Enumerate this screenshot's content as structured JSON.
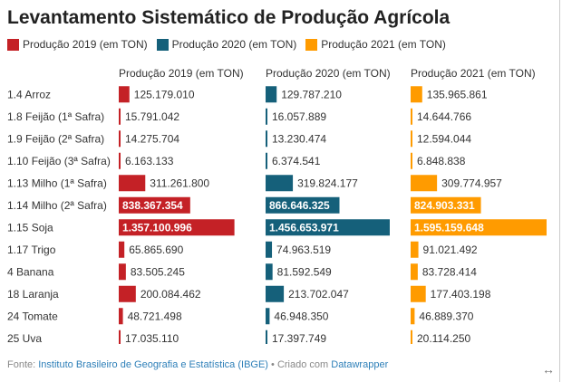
{
  "title": "Levantamento Sistemático de Produção Agrícola",
  "legend": [
    {
      "label": "Produção 2019 (em TON)",
      "color": "#c42126"
    },
    {
      "label": "Produção 2020 (em TON)",
      "color": "#15607a"
    },
    {
      "label": "Produção 2021 (em TON)",
      "color": "#ff9b00"
    }
  ],
  "chart_data": {
    "type": "bar",
    "orientation": "horizontal",
    "categories": [
      "1.4 Arroz",
      "1.8 Feijão (1ª Safra)",
      "1.9 Feijão (2ª Safra)",
      "1.10 Feijão (3ª Safra)",
      "1.13 Milho (1ª Safra)",
      "1.14 Milho (2ª Safra)",
      "1.15 Soja",
      "1.17 Trigo",
      "4 Banana",
      "18 Laranja",
      "24 Tomate",
      "25 Uva"
    ],
    "series": [
      {
        "name": "Produção 2019 (em TON)",
        "color": "#c42126",
        "values": [
          125179010,
          15791042,
          14275704,
          6163133,
          311261800,
          838367354,
          1357100996,
          65865690,
          83505245,
          200084462,
          48721498,
          17035110
        ],
        "labels": [
          "125.179.010",
          "15.791.042",
          "14.275.704",
          "6.163.133",
          "311.261.800",
          "838.367.354",
          "1.357.100.996",
          "65.865.690",
          "83.505.245",
          "200.084.462",
          "48.721.498",
          "17.035.110"
        ]
      },
      {
        "name": "Produção 2020 (em TON)",
        "color": "#15607a",
        "values": [
          129787210,
          16057889,
          13230474,
          6374541,
          319824177,
          866646325,
          1456653971,
          74963519,
          81592549,
          213702047,
          46948350,
          17397749
        ],
        "labels": [
          "129.787.210",
          "16.057.889",
          "13.230.474",
          "6.374.541",
          "319.824.177",
          "866.646.325",
          "1.456.653.971",
          "74.963.519",
          "81.592.549",
          "213.702.047",
          "46.948.350",
          "17.397.749"
        ]
      },
      {
        "name": "Produção 2021 (em TON)",
        "color": "#ff9b00",
        "values": [
          135965861,
          14644766,
          12594044,
          6848838,
          309774957,
          824903331,
          1595159648,
          91021492,
          83728414,
          177403198,
          46889370,
          20114250
        ],
        "labels": [
          "135.965.861",
          "14.644.766",
          "12.594.044",
          "6.848.838",
          "309.774.957",
          "824.903.331",
          "1.595.159.648",
          "91.021.492",
          "83.728.414",
          "177.403.198",
          "46.889.370",
          "20.114.250"
        ]
      }
    ],
    "xlim": [
      0,
      1595159648
    ]
  },
  "footer": {
    "source_prefix": "Fonte: ",
    "source_link": "Instituto Brasileiro de Geografia e Estatística (IBGE)",
    "separator": " • Criado com ",
    "tool_link": "Datawrapper"
  },
  "icons": {
    "expand": "expand-horizontal-icon"
  }
}
